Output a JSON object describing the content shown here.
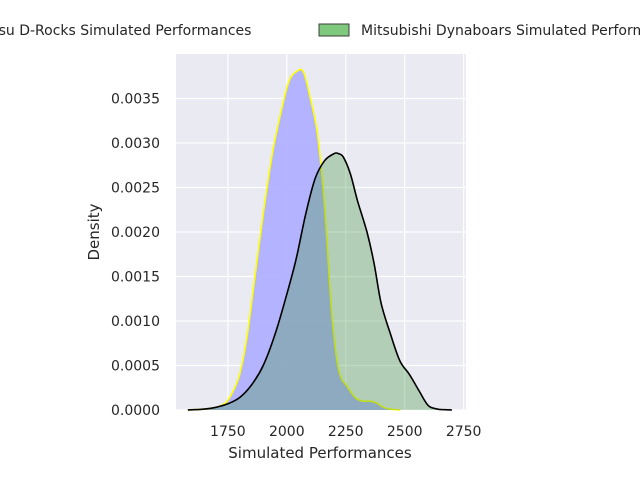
{
  "chart_data": {
    "type": "area",
    "title": "",
    "xlabel": "Simulated Performances",
    "ylabel": "Density",
    "xlim": [
      1530,
      2760
    ],
    "ylim": [
      0,
      0.004
    ],
    "xticks": [
      1750,
      2000,
      2250,
      2500,
      2750
    ],
    "xtick_labels": [
      "1750",
      "2000",
      "2250",
      "2500",
      "2750"
    ],
    "yticks": [
      0,
      0.0005,
      0.001,
      0.0015,
      0.002,
      0.0025,
      0.003,
      0.0035
    ],
    "ytick_labels": [
      "0.0000",
      "0.0005",
      "0.0010",
      "0.0015",
      "0.0020",
      "0.0025",
      "0.0030",
      "0.0035"
    ],
    "grid": true,
    "legend_position": "top-center-outside",
    "series": [
      {
        "name": "Nagasu D-Rocks Simulated Performances",
        "legend_label": "asu D-Rocks Simulated Performances",
        "fill_color": "#b0b0ff",
        "fill_opacity": 0.95,
        "line_color": "#ffff00",
        "x": [
          1580,
          1650,
          1700,
          1740,
          1770,
          1800,
          1830,
          1860,
          1900,
          1940,
          1980,
          2010,
          2040,
          2070,
          2100,
          2130,
          2160,
          2190,
          2220,
          2260,
          2290,
          2320,
          2350,
          2380,
          2410,
          2440,
          2480
        ],
        "y": [
          0,
          1e-05,
          3e-05,
          8e-05,
          0.0002,
          0.0004,
          0.0008,
          0.0014,
          0.0022,
          0.0029,
          0.0034,
          0.0037,
          0.0038,
          0.0038,
          0.0035,
          0.0031,
          0.0023,
          0.0011,
          0.00045,
          0.00025,
          0.00014,
          0.0001,
          0.0001,
          8e-05,
          3e-05,
          1e-05,
          0
        ]
      },
      {
        "name": "Mitsubishi Dynaboars Simulated Performances",
        "legend_label": "Mitsubishi Dynaboars Simulated Performances",
        "fill_color": "#4a9a4a",
        "fill_opacity": 0.35,
        "line_color": "#000000",
        "x": [
          1580,
          1650,
          1700,
          1750,
          1800,
          1850,
          1900,
          1950,
          2000,
          2040,
          2080,
          2120,
          2160,
          2200,
          2220,
          2240,
          2270,
          2300,
          2340,
          2370,
          2400,
          2440,
          2480,
          2520,
          2560,
          2600,
          2640,
          2660,
          2700
        ],
        "y": [
          0,
          1e-05,
          3e-05,
          7e-05,
          0.00014,
          0.00028,
          0.0005,
          0.00085,
          0.0013,
          0.0017,
          0.0022,
          0.0026,
          0.0028,
          0.00288,
          0.00288,
          0.00284,
          0.00265,
          0.00235,
          0.002,
          0.00165,
          0.0012,
          0.00085,
          0.00055,
          0.0004,
          0.00022,
          5e-05,
          1e-05,
          5e-06,
          0
        ]
      }
    ]
  }
}
